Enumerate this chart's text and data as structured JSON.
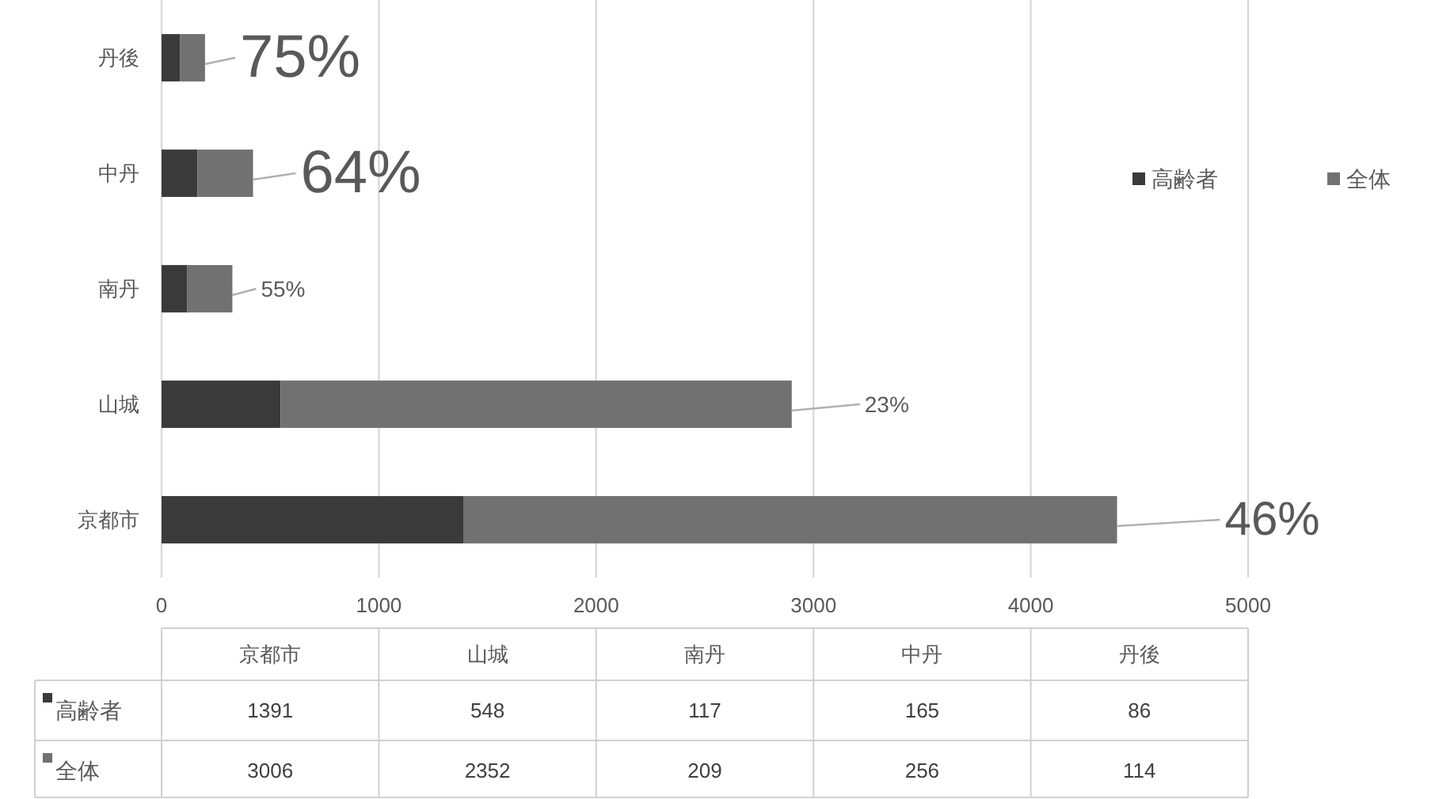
{
  "chart_data": [
    {
      "type": "bar",
      "orientation": "horizontal",
      "stacked": true,
      "categories": [
        "丹後",
        "中丹",
        "南丹",
        "山城",
        "京都市"
      ],
      "series": [
        {
          "name": "高齢者",
          "color": "#3a3a3a",
          "values": [
            86,
            165,
            117,
            548,
            1391
          ]
        },
        {
          "name": "全体",
          "color": "#717171",
          "values": [
            114,
            256,
            209,
            2352,
            3006
          ]
        }
      ],
      "xlim": [
        0,
        5000
      ],
      "xticks": [
        0,
        1000,
        2000,
        3000,
        4000,
        5000
      ],
      "grid": "x",
      "legend": "right",
      "annotations": [
        {
          "text": "75%",
          "x": 200,
          "y": "丹後"
        },
        {
          "text": "64%",
          "x": 421,
          "y": "中丹"
        },
        {
          "text": "55%",
          "x": 326,
          "y": "南丹"
        },
        {
          "text": "23%",
          "x": 2900,
          "y": "山城"
        },
        {
          "text": "46%",
          "x": 4397,
          "y": "京都市"
        }
      ]
    },
    {
      "type": "heatmap",
      "categories": [
        "京都市",
        "山城",
        "南丹",
        "中丹",
        "丹後"
      ],
      "y_categories": [
        "高齢者",
        "全体"
      ],
      "cells": [
        [
          1391,
          548,
          117,
          165,
          86
        ],
        [
          3006,
          2352,
          209,
          256,
          114
        ]
      ],
      "data_labels": true
    }
  ]
}
